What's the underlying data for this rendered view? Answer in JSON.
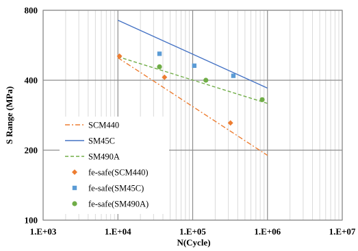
{
  "chart_data": {
    "type": "scatter",
    "title": "",
    "xlabel": "N(Cycle)",
    "ylabel": "S Range (MPa)",
    "xscale": "log",
    "yscale": "log",
    "xlim": [
      1000,
      10000000
    ],
    "ylim": [
      100,
      800
    ],
    "xticks": [
      "1.E+03",
      "1.E+04",
      "1.E+05",
      "1.E+06",
      "1.E+07"
    ],
    "yticks": [
      "100",
      "200",
      "400",
      "800"
    ],
    "grid": true,
    "legend": "bottom-left",
    "series": [
      {
        "name": "SCM440",
        "kind": "line",
        "style": "dash-dot",
        "color": "#ED7D31",
        "x": [
          10000,
          1000000
        ],
        "y": [
          500,
          190
        ]
      },
      {
        "name": "SM45C",
        "kind": "line",
        "style": "solid",
        "color": "#4472C4",
        "x": [
          10000,
          1000000
        ],
        "y": [
          725,
          370
        ]
      },
      {
        "name": "SM490A",
        "kind": "line",
        "style": "dashed",
        "color": "#70AD47",
        "x": [
          10000,
          1000000
        ],
        "y": [
          505,
          318
        ]
      },
      {
        "name": "fe-safe(SCM440)",
        "kind": "marker",
        "marker": "diamond",
        "color": "#ED7D31",
        "x": [
          10500,
          42000,
          320000
        ],
        "y": [
          508,
          412,
          262
        ]
      },
      {
        "name": "fe-safe(SM45C)",
        "kind": "marker",
        "marker": "square",
        "color": "#5B9BD5",
        "x": [
          36000,
          105000,
          350000
        ],
        "y": [
          520,
          462,
          418
        ]
      },
      {
        "name": "fe-safe(SM490A)",
        "kind": "marker",
        "marker": "circle",
        "color": "#70AD47",
        "x": [
          36000,
          150000,
          850000
        ],
        "y": [
          457,
          400,
          330
        ]
      }
    ]
  }
}
